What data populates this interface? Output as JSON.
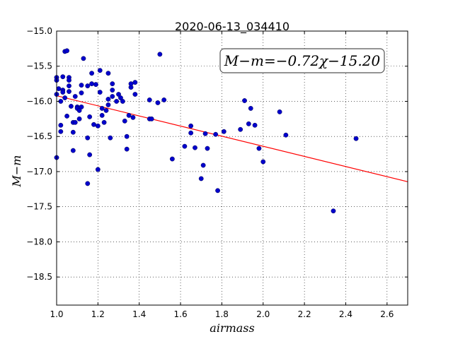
{
  "chart_data": {
    "type": "scatter",
    "title": "2020-06-13_034410",
    "xlabel": "airmass",
    "ylabel": "M−m",
    "annotation": "M−m=−0.72χ−15.20",
    "xlim": [
      1.0,
      2.7
    ],
    "ylim": [
      -15.0,
      -18.9
    ],
    "y_inverted": true,
    "grid": true,
    "x_ticks": [
      1.0,
      1.2,
      1.4,
      1.6,
      1.8,
      2.0,
      2.2,
      2.4,
      2.6
    ],
    "x_tick_labels": [
      "1.0",
      "1.2",
      "1.4",
      "1.6",
      "1.8",
      "2.0",
      "2.2",
      "2.4",
      "2.6"
    ],
    "y_ticks": [
      -15.0,
      -15.5,
      -16.0,
      -16.5,
      -17.0,
      -17.5,
      -18.0,
      -18.5
    ],
    "y_tick_labels": [
      "−15.0",
      "−15.5",
      "−16.0",
      "−16.5",
      "−17.0",
      "−17.5",
      "−18.0",
      "−18.5"
    ],
    "fit": {
      "slope": -0.72,
      "intercept": -15.2,
      "color": "#ff0000"
    },
    "point_color": "#0000cc",
    "points": [
      [
        1.0,
        -16.8
      ],
      [
        1.0,
        -15.66
      ],
      [
        1.0,
        -15.7
      ],
      [
        1.0,
        -15.9
      ],
      [
        1.01,
        -15.82
      ],
      [
        1.02,
        -16.34
      ],
      [
        1.02,
        -16.43
      ],
      [
        1.02,
        -16.0
      ],
      [
        1.03,
        -15.65
      ],
      [
        1.03,
        -15.84
      ],
      [
        1.03,
        -15.87
      ],
      [
        1.04,
        -15.95
      ],
      [
        1.04,
        -15.29
      ],
      [
        1.05,
        -16.21
      ],
      [
        1.05,
        -15.28
      ],
      [
        1.06,
        -15.66
      ],
      [
        1.06,
        -15.7
      ],
      [
        1.06,
        -15.78
      ],
      [
        1.06,
        -15.86
      ],
      [
        1.07,
        -16.07
      ],
      [
        1.08,
        -16.3
      ],
      [
        1.08,
        -16.44
      ],
      [
        1.08,
        -16.7
      ],
      [
        1.09,
        -15.93
      ],
      [
        1.09,
        -16.3
      ],
      [
        1.1,
        -16.08
      ],
      [
        1.1,
        -16.1
      ],
      [
        1.11,
        -16.13
      ],
      [
        1.11,
        -16.25
      ],
      [
        1.12,
        -15.88
      ],
      [
        1.12,
        -16.08
      ],
      [
        1.12,
        -15.77
      ],
      [
        1.13,
        -15.39
      ],
      [
        1.15,
        -16.52
      ],
      [
        1.15,
        -17.17
      ],
      [
        1.15,
        -15.78
      ],
      [
        1.16,
        -16.76
      ],
      [
        1.16,
        -16.22
      ],
      [
        1.17,
        -15.6
      ],
      [
        1.17,
        -15.75
      ],
      [
        1.18,
        -16.33
      ],
      [
        1.19,
        -15.76
      ],
      [
        1.2,
        -16.35
      ],
      [
        1.2,
        -16.97
      ],
      [
        1.21,
        -15.87
      ],
      [
        1.21,
        -15.56
      ],
      [
        1.22,
        -16.1
      ],
      [
        1.22,
        -16.2
      ],
      [
        1.23,
        -16.3
      ],
      [
        1.24,
        -16.13
      ],
      [
        1.25,
        -15.97
      ],
      [
        1.25,
        -15.6
      ],
      [
        1.25,
        -16.05
      ],
      [
        1.26,
        -16.52
      ],
      [
        1.27,
        -15.84
      ],
      [
        1.27,
        -15.93
      ],
      [
        1.27,
        -15.75
      ],
      [
        1.29,
        -16.0
      ],
      [
        1.3,
        -15.9
      ],
      [
        1.31,
        -15.95
      ],
      [
        1.32,
        -16.0
      ],
      [
        1.33,
        -16.28
      ],
      [
        1.34,
        -16.5
      ],
      [
        1.34,
        -16.68
      ],
      [
        1.35,
        -16.2
      ],
      [
        1.36,
        -15.8
      ],
      [
        1.36,
        -15.75
      ],
      [
        1.37,
        -16.23
      ],
      [
        1.38,
        -15.9
      ],
      [
        1.38,
        -15.73
      ],
      [
        1.45,
        -15.98
      ],
      [
        1.45,
        -16.25
      ],
      [
        1.46,
        -16.25
      ],
      [
        1.49,
        -16.02
      ],
      [
        1.5,
        -15.33
      ],
      [
        1.52,
        -15.98
      ],
      [
        1.56,
        -16.82
      ],
      [
        1.62,
        -16.64
      ],
      [
        1.65,
        -16.35
      ],
      [
        1.65,
        -16.45
      ],
      [
        1.67,
        -16.66
      ],
      [
        1.7,
        -17.1
      ],
      [
        1.71,
        -16.91
      ],
      [
        1.72,
        -16.46
      ],
      [
        1.73,
        -16.67
      ],
      [
        1.77,
        -16.47
      ],
      [
        1.78,
        -17.27
      ],
      [
        1.81,
        -16.43
      ],
      [
        1.89,
        -16.4
      ],
      [
        1.91,
        -15.99
      ],
      [
        1.93,
        -16.32
      ],
      [
        1.94,
        -16.1
      ],
      [
        1.96,
        -16.34
      ],
      [
        1.98,
        -16.67
      ],
      [
        2.0,
        -16.86
      ],
      [
        2.08,
        -16.15
      ],
      [
        2.11,
        -16.48
      ],
      [
        2.34,
        -17.56
      ],
      [
        2.45,
        -16.53
      ]
    ]
  }
}
